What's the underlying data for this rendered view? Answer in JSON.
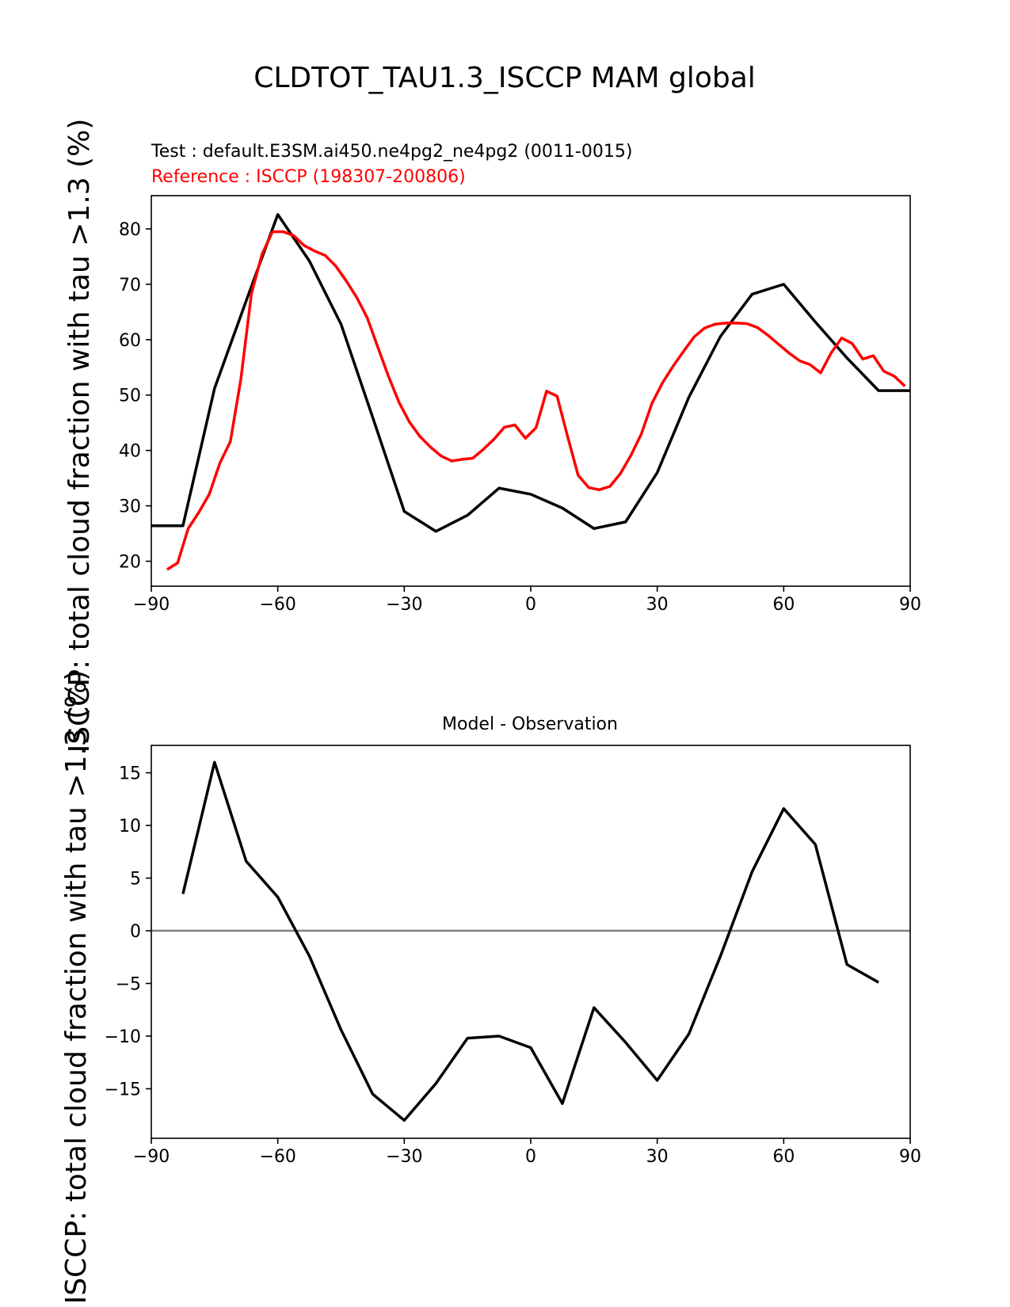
{
  "figure": {
    "title": "CLDTOT_TAU1.3_ISCCP MAM global",
    "ylabel": "ISCCP: total cloud fraction with tau >1.3 (%)"
  },
  "chart_data": [
    {
      "type": "line",
      "title_test": "Test : default.E3SM.ai450.ne4pg2_ne4pg2 (0011-0015)",
      "title_reference": "Reference : ISCCP (198307-200806)",
      "xlim": [
        -90,
        90
      ],
      "ylim": [
        15.5,
        86
      ],
      "xticks": [
        -90,
        -60,
        -30,
        0,
        30,
        60,
        90
      ],
      "yticks": [
        20,
        30,
        40,
        50,
        60,
        70,
        80
      ],
      "series": [
        {
          "color": "#000000",
          "x": [
            -90,
            -82.5,
            -75,
            -67.5,
            -60,
            -52.5,
            -45,
            -37.5,
            -30,
            -22.5,
            -15,
            -7.5,
            0,
            7.5,
            15,
            22.5,
            30,
            37.5,
            45,
            52.5,
            60,
            67.5,
            75,
            82.5,
            90
          ],
          "y": [
            26.4,
            26.4,
            51.2,
            67.0,
            82.6,
            74.2,
            62.8,
            46.0,
            29.0,
            25.4,
            28.3,
            33.2,
            32.1,
            29.6,
            25.9,
            27.1,
            36.0,
            49.6,
            60.6,
            68.2,
            70.0,
            63.2,
            56.7,
            50.8,
            50.8
          ]
        },
        {
          "color": "#ff0000",
          "x": [
            -86.25,
            -83.75,
            -81.25,
            -78.75,
            -76.25,
            -73.75,
            -71.25,
            -68.75,
            -66.25,
            -63.75,
            -61.25,
            -58.75,
            -56.25,
            -53.75,
            -51.25,
            -48.75,
            -46.25,
            -43.75,
            -41.25,
            -38.75,
            -36.25,
            -33.75,
            -31.25,
            -28.75,
            -26.25,
            -23.75,
            -21.25,
            -18.75,
            -16.25,
            -13.75,
            -11.25,
            -8.75,
            -6.25,
            -3.75,
            -1.25,
            1.25,
            3.75,
            6.25,
            8.75,
            11.25,
            13.75,
            16.25,
            18.75,
            21.25,
            23.75,
            26.25,
            28.75,
            31.25,
            33.75,
            36.25,
            38.75,
            41.25,
            43.75,
            46.25,
            48.75,
            51.25,
            53.75,
            56.25,
            58.75,
            61.25,
            63.75,
            66.25,
            68.75,
            71.25,
            73.75,
            76.25,
            78.75,
            81.25,
            83.75,
            86.25,
            88.75
          ],
          "y": [
            18.5,
            19.7,
            25.9,
            28.8,
            32.1,
            37.7,
            41.6,
            52.9,
            68.3,
            75.4,
            79.5,
            79.5,
            78.8,
            77.0,
            76.0,
            75.2,
            73.3,
            70.6,
            67.6,
            63.9,
            58.6,
            53.4,
            48.7,
            45.1,
            42.5,
            40.6,
            39.0,
            38.1,
            38.4,
            38.6,
            40.2,
            42.0,
            44.2,
            44.6,
            42.2,
            44.1,
            50.7,
            49.8,
            42.5,
            35.5,
            33.3,
            32.9,
            33.5,
            35.8,
            39.1,
            43.0,
            48.5,
            52.2,
            55.2,
            57.9,
            60.5,
            62.1,
            62.8,
            63.0,
            63.0,
            62.9,
            62.2,
            60.8,
            59.2,
            57.6,
            56.2,
            55.5,
            54.0,
            57.6,
            60.3,
            59.3,
            56.5,
            57.1,
            54.3,
            53.4,
            51.6
          ]
        }
      ]
    },
    {
      "type": "line",
      "title": "Model - Observation",
      "xlim": [
        -90,
        90
      ],
      "ylim": [
        -19.7,
        17.6
      ],
      "xticks": [
        -90,
        -60,
        -30,
        0,
        30,
        60,
        90
      ],
      "yticks": [
        -15,
        -10,
        -5,
        0,
        5,
        10,
        15
      ],
      "zero_line_color": "#808080",
      "series": [
        {
          "color": "#000000",
          "x": [
            -82.5,
            -75,
            -67.5,
            -60,
            -52.5,
            -45,
            -37.5,
            -30,
            -22.5,
            -15,
            -7.5,
            0,
            7.5,
            15,
            22.5,
            30,
            37.5,
            45,
            52.5,
            60,
            67.5,
            75,
            82.5
          ],
          "y": [
            3.5,
            16.0,
            6.6,
            3.2,
            -2.4,
            -9.4,
            -15.5,
            -18.0,
            -14.5,
            -10.2,
            -10.0,
            -11.1,
            -16.4,
            -7.3,
            -10.6,
            -14.2,
            -9.8,
            -2.4,
            5.6,
            11.6,
            8.2,
            -3.2,
            -4.9
          ]
        }
      ]
    }
  ]
}
